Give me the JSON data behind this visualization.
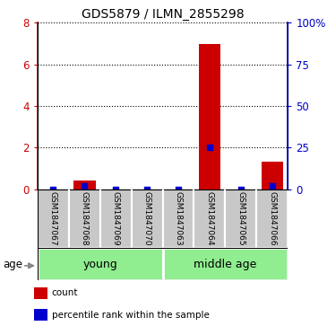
{
  "title": "GDS5879 / ILMN_2855298",
  "samples": [
    "GSM1847067",
    "GSM1847068",
    "GSM1847069",
    "GSM1847070",
    "GSM1847063",
    "GSM1847064",
    "GSM1847065",
    "GSM1847066"
  ],
  "count_values": [
    0,
    0.4,
    0,
    0,
    0,
    7.0,
    0,
    1.3
  ],
  "percentile_values": [
    0,
    2.0,
    0,
    0,
    0,
    25.0,
    0,
    2.0
  ],
  "ylim_left": [
    0,
    8
  ],
  "ylim_right": [
    0,
    100
  ],
  "yticks_left": [
    0,
    2,
    4,
    6,
    8
  ],
  "yticks_right": [
    0,
    25,
    50,
    75,
    100
  ],
  "ytick_labels_right": [
    "0",
    "25",
    "50",
    "75",
    "100%"
  ],
  "groups": [
    {
      "label": "young",
      "start": 0,
      "end": 3
    },
    {
      "label": "middle age",
      "start": 4,
      "end": 7
    }
  ],
  "group_color": "#90EE90",
  "bar_color_red": "#CC0000",
  "bar_color_blue": "#0000CC",
  "sample_box_color": "#C8C8C8",
  "age_label": "age",
  "legend_items": [
    {
      "color": "#CC0000",
      "label": "count"
    },
    {
      "color": "#0000CC",
      "label": "percentile rank within the sample"
    }
  ],
  "bar_width": 0.7,
  "dot_size": 18
}
